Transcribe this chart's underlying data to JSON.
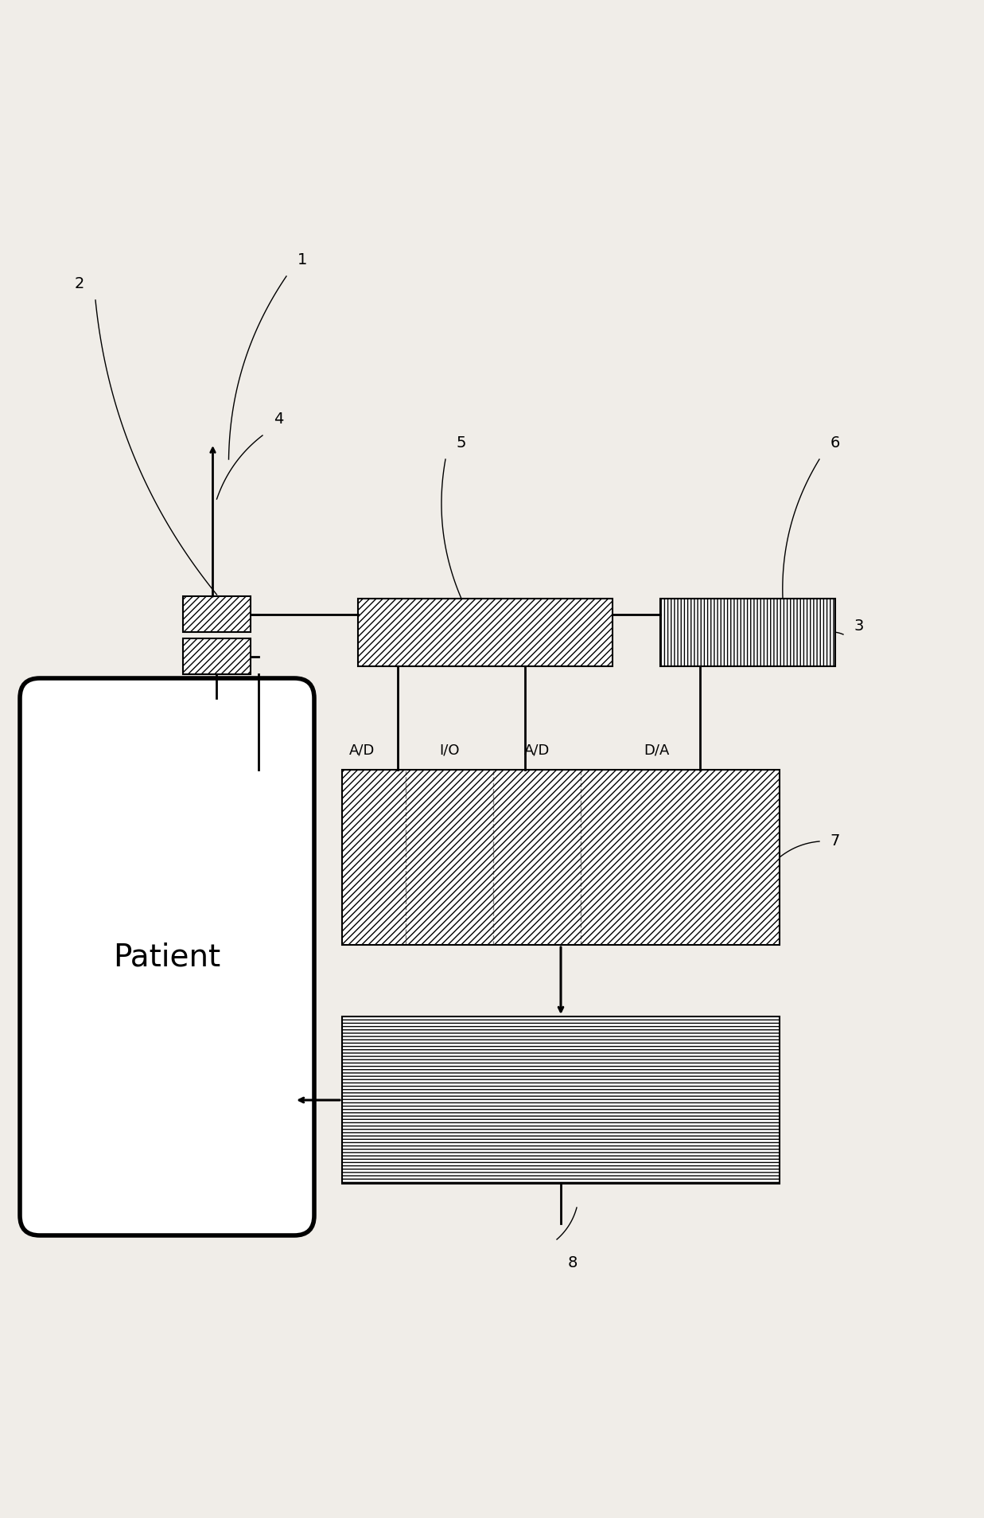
{
  "bg_color": "#f0ede8",
  "line_color": "#000000",
  "hatch_diag": "////",
  "hatch_vert": "||||",
  "hatch_horiz": "----",
  "label1": "1",
  "label2": "2",
  "label3": "3",
  "label4": "4",
  "label5": "5",
  "label6": "6",
  "label7": "7",
  "label8": "8",
  "patient_text": "Patient",
  "ad_label1": "A/D",
  "io_label": "I/O",
  "ad_label2": "A/D",
  "da_label": "D/A",
  "font_size_labels": 14,
  "font_size_patient": 28,
  "font_size_port_labels": 13
}
